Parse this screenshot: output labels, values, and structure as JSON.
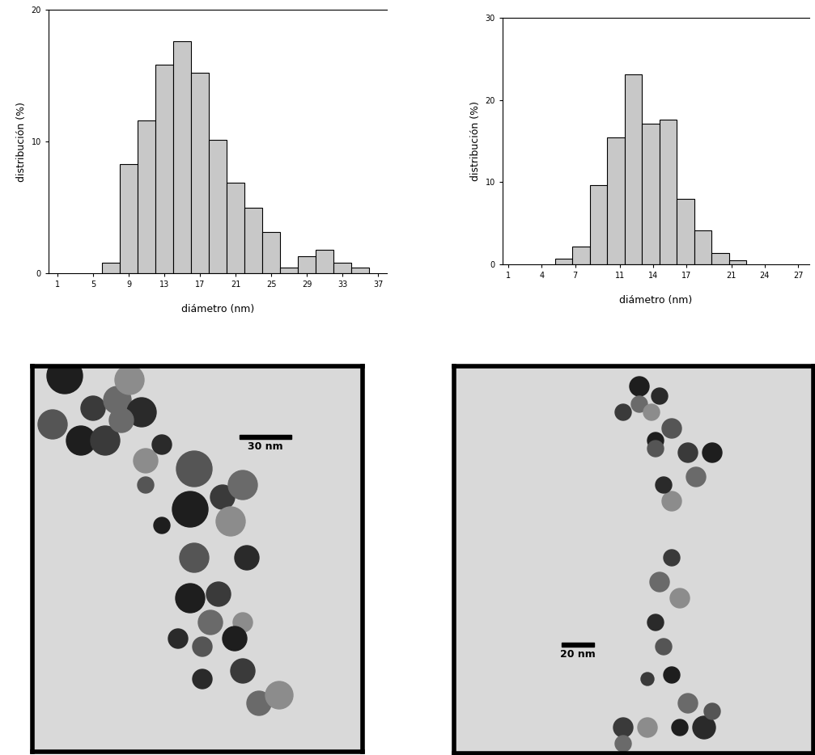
{
  "chart_data": [
    {
      "type": "histogram",
      "ylabel": "distribución (%)",
      "xlabel": "diámetro (nm)",
      "bins": [
        6,
        8,
        10,
        12,
        14,
        16,
        18,
        20,
        22,
        24,
        26,
        28,
        30,
        32,
        34,
        36
      ],
      "values": [
        0.8,
        8.3,
        11.6,
        15.8,
        17.6,
        15.2,
        10.1,
        6.9,
        5.0,
        3.1,
        0.4,
        1.3,
        1.8,
        0.8,
        0.4
      ],
      "color": "#c8c8c8",
      "xlim": [
        0,
        38
      ],
      "xticks": [
        1,
        5,
        9,
        13,
        17,
        21,
        25,
        29,
        33,
        37
      ],
      "ylim": [
        0,
        20
      ],
      "yticks": [
        0,
        10,
        20
      ]
    },
    {
      "type": "histogram",
      "ylabel": "distribución (%)",
      "xlabel": "diámetro (nm)",
      "bins": [
        5.2,
        6.76,
        8.32,
        9.88,
        11.44,
        13.0,
        14.56,
        16.12,
        17.68,
        19.24,
        20.8,
        22.36
      ],
      "values": [
        0.7,
        2.2,
        9.6,
        15.4,
        23.1,
        17.1,
        17.6,
        8.0,
        4.1,
        1.4,
        0.5
      ],
      "color": "#c8c8c8",
      "xlim": [
        0.5,
        28
      ],
      "xticks": [
        1,
        4,
        7,
        11,
        14,
        17,
        21,
        24,
        27
      ],
      "ylim": [
        0,
        30
      ],
      "yticks": [
        0,
        10,
        20,
        30
      ]
    }
  ],
  "images": [
    {
      "scale_bar": "30 nm"
    },
    {
      "scale_bar": "20 nm"
    }
  ]
}
